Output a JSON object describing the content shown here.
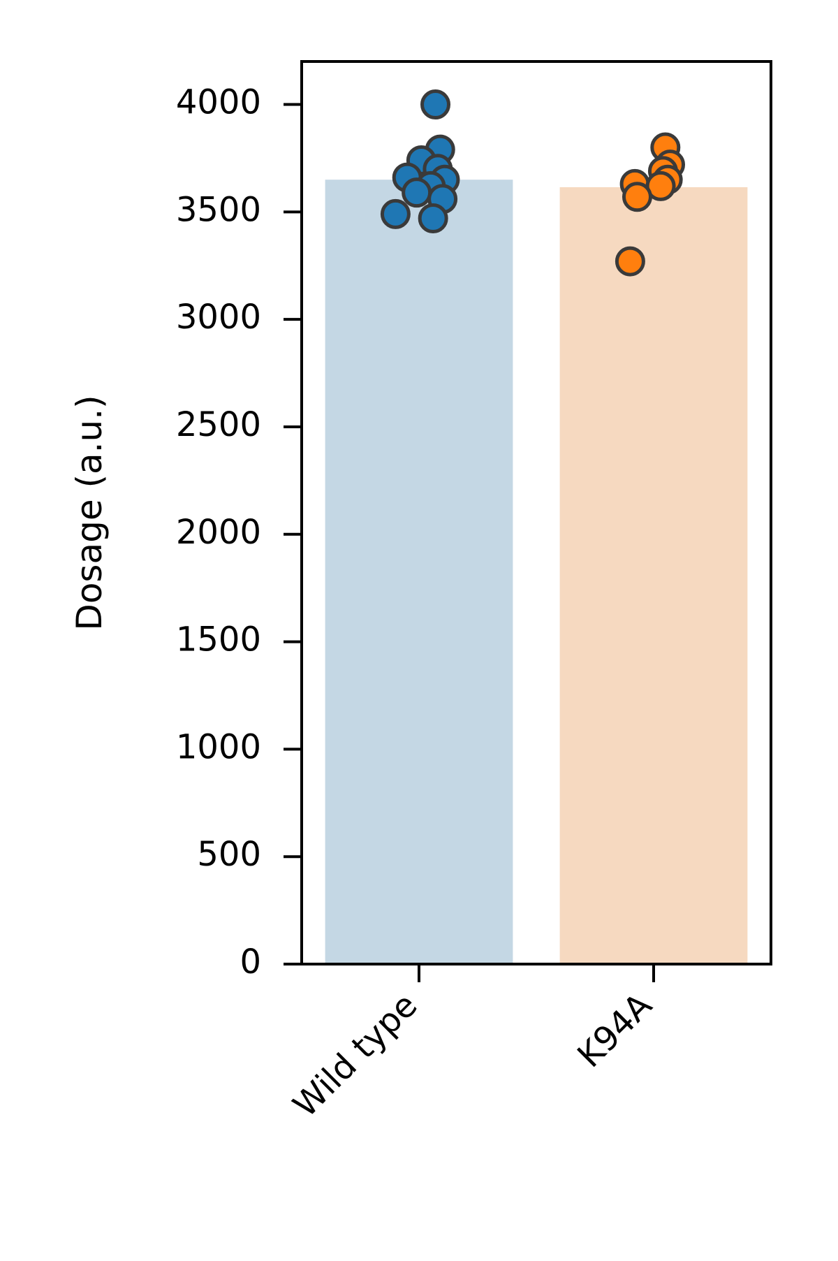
{
  "chart_data": {
    "type": "bar",
    "title": "",
    "xlabel": "",
    "ylabel": "Dosage (a.u.)",
    "ylim": [
      0,
      4200
    ],
    "yticks": [
      0,
      500,
      1000,
      1500,
      2000,
      2500,
      3000,
      3500,
      4000
    ],
    "ytick_labels": [
      "0",
      "500",
      "1000",
      "1500",
      "2000",
      "2500",
      "3000",
      "3500",
      "4000"
    ],
    "categories": [
      "Wild type",
      "K94A"
    ],
    "values": [
      3650,
      3615
    ],
    "bar_colors": [
      "#c4d7e4",
      "#f6d9c0"
    ],
    "point_colors": [
      "#1f77b4",
      "#ff7f0e"
    ],
    "point_edge_color": "#3a3a3a",
    "grid": false,
    "legend": "none",
    "points": [
      [
        {
          "jitter": 0.07,
          "y": 4000
        },
        {
          "jitter": 0.09,
          "y": 3790
        },
        {
          "jitter": 0.01,
          "y": 3740
        },
        {
          "jitter": 0.08,
          "y": 3700
        },
        {
          "jitter": -0.05,
          "y": 3660
        },
        {
          "jitter": 0.11,
          "y": 3650
        },
        {
          "jitter": 0.05,
          "y": 3620
        },
        {
          "jitter": -0.01,
          "y": 3590
        },
        {
          "jitter": 0.1,
          "y": 3560
        },
        {
          "jitter": -0.1,
          "y": 3490
        },
        {
          "jitter": 0.06,
          "y": 3470
        }
      ],
      [
        {
          "jitter": 0.05,
          "y": 3800
        },
        {
          "jitter": 0.07,
          "y": 3720
        },
        {
          "jitter": 0.04,
          "y": 3690
        },
        {
          "jitter": 0.06,
          "y": 3650
        },
        {
          "jitter": -0.08,
          "y": 3630
        },
        {
          "jitter": 0.03,
          "y": 3620
        },
        {
          "jitter": -0.07,
          "y": 3570
        },
        {
          "jitter": -0.1,
          "y": 3270
        }
      ]
    ]
  }
}
